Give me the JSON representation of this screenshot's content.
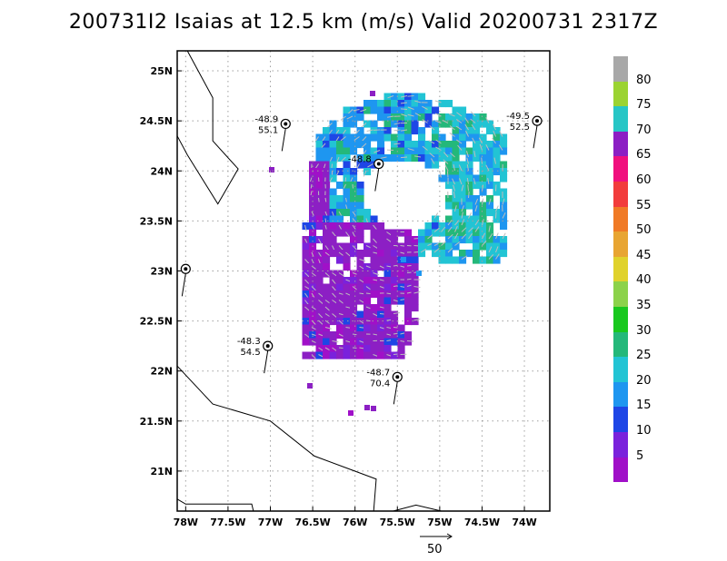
{
  "title": "200731I2 Isaias at 12.5 km (m/s) Valid 20200731  2317Z",
  "axes": {
    "x_ticks": [
      "78W",
      "77.5W",
      "77W",
      "76.5W",
      "76W",
      "75.5W",
      "75W",
      "74.5W",
      "74W"
    ],
    "x_values": [
      -78,
      -77.5,
      -77,
      -76.5,
      -76,
      -75.5,
      -75,
      -74.5,
      -74
    ],
    "y_ticks": [
      "25N",
      "24.5N",
      "24N",
      "23.5N",
      "23N",
      "22.5N",
      "22N",
      "21.5N",
      "21N"
    ],
    "y_values": [
      25,
      24.5,
      24,
      23.5,
      23,
      22.5,
      22,
      21.5,
      21
    ],
    "xlim": [
      -78.1,
      -73.7
    ],
    "ylim": [
      20.6,
      25.2
    ],
    "grid": true
  },
  "colorbar": {
    "labels": [
      "80",
      "75",
      "70",
      "65",
      "60",
      "55",
      "50",
      "45",
      "40",
      "35",
      "30",
      "25",
      "20",
      "15",
      "10",
      "5"
    ],
    "colors": [
      "#a8a8a8",
      "#9bd332",
      "#27c6c6",
      "#8c1fc4",
      "#f0107e",
      "#f23c3c",
      "#f07a26",
      "#e8a532",
      "#e0d22c",
      "#8cd24a",
      "#19c81e",
      "#24b87a",
      "#22c4d4",
      "#1e96f0",
      "#1e46e6",
      "#7a22dc",
      "#a010c8"
    ]
  },
  "stations": [
    {
      "lon": -76.82,
      "lat": 24.47,
      "top": "-48.9",
      "bottom": "55.1"
    },
    {
      "lon": -75.72,
      "lat": 24.07,
      "top": "-48.8",
      "bottom": ""
    },
    {
      "lon": -73.85,
      "lat": 24.5,
      "top": "-49.5",
      "bottom": "52.5"
    },
    {
      "lon": -77.03,
      "lat": 22.25,
      "top": "-48.3",
      "bottom": "54.5"
    },
    {
      "lon": -75.5,
      "lat": 21.94,
      "top": "-48.7",
      "bottom": "70.4"
    },
    {
      "lon": -78.0,
      "lat": 23.02,
      "top": "",
      "bottom": ""
    }
  ],
  "reference_vector_label": "50"
}
